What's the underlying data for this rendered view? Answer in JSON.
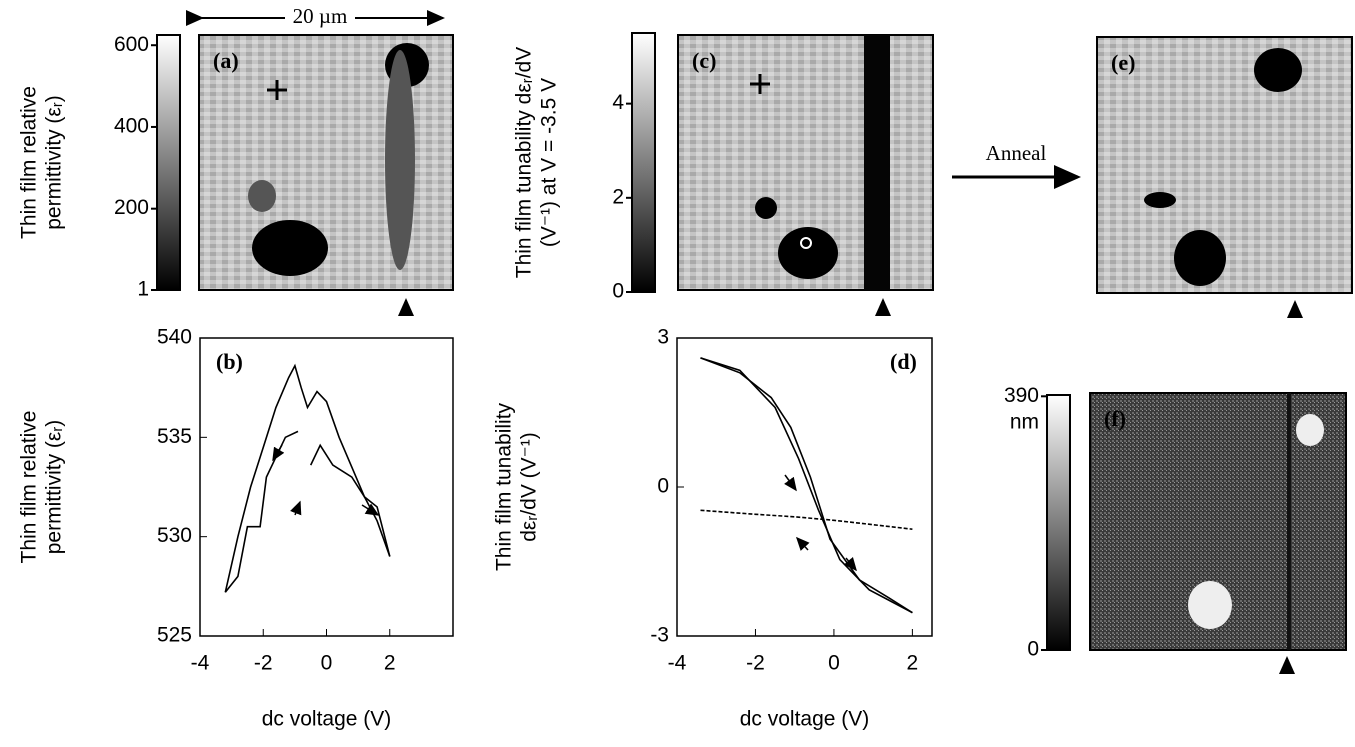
{
  "chart_data": [
    {
      "type": "colorbar",
      "ylabel": [
        "Thin film relative",
        "permittivity (εᵣ)"
      ],
      "ylim": [
        1,
        625
      ],
      "yticks": [
        1,
        200,
        400,
        600
      ]
    },
    {
      "type": "image",
      "label": "(a)"
    },
    {
      "type": "colorbar",
      "ylabel": [
        "Thin film tunability dεᵣ/dV",
        "(V⁻¹) at V = -3.5 V"
      ],
      "ylim": [
        0,
        5.5
      ],
      "yticks": [
        0,
        2,
        4
      ]
    },
    {
      "type": "image",
      "label": "(c)"
    },
    {
      "type": "image",
      "label": "(e)"
    },
    {
      "type": "line",
      "label": "(b)",
      "xlabel": "dc voltage (V)",
      "ylabel": [
        "Thin film relative",
        "permittivity (εᵣ)"
      ],
      "xlim": [
        -4,
        4
      ],
      "ylim": [
        525,
        540
      ],
      "xticks": [
        -4,
        -2,
        0,
        2
      ],
      "yticks": [
        525,
        530,
        535,
        540
      ],
      "series": [
        {
          "color": "#000000",
          "x": [
            -3.2,
            -2.8,
            -2.4,
            -2,
            -1.6,
            -1.2,
            -1,
            -0.8,
            -0.6,
            -0.3,
            0,
            0.4,
            0.8,
            1.2,
            1.6,
            2
          ],
          "values": [
            527.2,
            530,
            532.5,
            534.5,
            536.5,
            538,
            538.6,
            537.5,
            536.5,
            537.3,
            536.8,
            535,
            533.5,
            532,
            530.8,
            529
          ]
        },
        {
          "color": "#000000",
          "x": [
            -3.2,
            -2.8,
            -2.5,
            -2.1,
            -1.9,
            -1.6,
            -1.3,
            -0.9,
            -0.7,
            -0.5,
            -0.2,
            0.2,
            0.8,
            1.2,
            1.6,
            2
          ],
          "values": [
            527.2,
            528,
            530.5,
            530.5,
            533,
            534,
            535,
            535.3,
            null,
            533.6,
            534.6,
            533.6,
            533,
            532,
            531.5,
            529
          ]
        }
      ]
    },
    {
      "type": "line",
      "label": "(d)",
      "xlabel": "dc voltage (V)",
      "ylabel": [
        "Thin film tunability",
        "dεᵣ/dV (V⁻¹)"
      ],
      "xlim": [
        -4,
        2.5
      ],
      "ylim": [
        -3,
        3
      ],
      "xticks": [
        -4,
        -2,
        0,
        2
      ],
      "yticks": [
        -3,
        0,
        3
      ],
      "series": [
        {
          "color": "#000000",
          "x": [
            -3.4,
            -2.4,
            -1.6,
            -1.1,
            -0.6,
            -0.1,
            0.65,
            1.4,
            2
          ],
          "values": [
            2.6,
            2.3,
            1.8,
            1.2,
            0.2,
            -1.05,
            -1.87,
            -2.23,
            -2.53
          ]
        },
        {
          "color": "#000000",
          "x": [
            -3.4,
            -2.4,
            -1.5,
            -0.9,
            -0.4,
            0.15,
            0.9,
            2
          ],
          "values": [
            2.6,
            2.35,
            1.6,
            0.57,
            -0.45,
            -1.46,
            -2.07,
            -2.53
          ]
        },
        {
          "color": "#000000",
          "style": "dashed",
          "x": [
            -3.4,
            -2,
            -1,
            0,
            1,
            2
          ],
          "values": [
            -0.47,
            -0.55,
            -0.6,
            -0.67,
            -0.76,
            -0.85
          ]
        }
      ]
    },
    {
      "type": "colorbar",
      "unit": "nm",
      "ylim": [
        0,
        392
      ],
      "yticks": [
        0,
        390
      ]
    },
    {
      "type": "image",
      "label": "(f)"
    }
  ],
  "scale_bar": "20 µm",
  "process_label": "Anneal"
}
